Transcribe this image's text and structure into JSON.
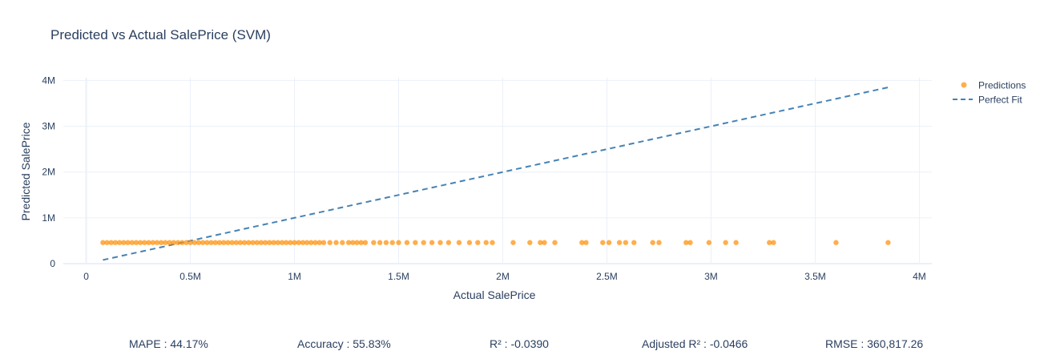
{
  "chart_data": {
    "type": "scatter",
    "title": "Predicted vs Actual SalePrice (SVM)",
    "xlabel": "Actual SalePrice",
    "ylabel": "Predicted SalePrice",
    "xlim": [
      -110000,
      4060000
    ],
    "ylim": [
      0,
      4060000
    ],
    "x_ticks": [
      {
        "value": 0,
        "label": "0"
      },
      {
        "value": 500000,
        "label": "0.5M"
      },
      {
        "value": 1000000,
        "label": "1M"
      },
      {
        "value": 1500000,
        "label": "1.5M"
      },
      {
        "value": 2000000,
        "label": "2M"
      },
      {
        "value": 2500000,
        "label": "2.5M"
      },
      {
        "value": 3000000,
        "label": "3M"
      },
      {
        "value": 3500000,
        "label": "3.5M"
      },
      {
        "value": 4000000,
        "label": "4M"
      }
    ],
    "y_ticks": [
      {
        "value": 0,
        "label": "0"
      },
      {
        "value": 1000000,
        "label": "1M"
      },
      {
        "value": 2000000,
        "label": "2M"
      },
      {
        "value": 3000000,
        "label": "3M"
      },
      {
        "value": 4000000,
        "label": "4M"
      }
    ],
    "grid": true,
    "legend_position": "top-right",
    "series": [
      {
        "name": "Predictions",
        "mode": "markers",
        "color": "#ff8c00",
        "x": [
          80000,
          100000,
          120000,
          140000,
          160000,
          180000,
          200000,
          220000,
          240000,
          260000,
          280000,
          300000,
          320000,
          340000,
          360000,
          380000,
          400000,
          420000,
          440000,
          460000,
          480000,
          500000,
          520000,
          540000,
          560000,
          580000,
          600000,
          620000,
          640000,
          660000,
          680000,
          700000,
          720000,
          740000,
          760000,
          780000,
          800000,
          820000,
          840000,
          860000,
          880000,
          900000,
          920000,
          940000,
          960000,
          980000,
          1000000,
          1020000,
          1040000,
          1060000,
          1080000,
          1100000,
          1120000,
          1140000,
          1170000,
          1200000,
          1230000,
          1260000,
          1280000,
          1300000,
          1320000,
          1340000,
          1380000,
          1410000,
          1440000,
          1470000,
          1500000,
          1540000,
          1580000,
          1620000,
          1660000,
          1700000,
          1740000,
          1790000,
          1840000,
          1880000,
          1920000,
          1950000,
          2050000,
          2130000,
          2180000,
          2200000,
          2250000,
          2380000,
          2400000,
          2480000,
          2510000,
          2560000,
          2590000,
          2630000,
          2720000,
          2750000,
          2880000,
          2900000,
          2990000,
          3070000,
          3120000,
          3280000,
          3300000,
          3600000,
          3850000
        ],
        "y": [
          460000,
          460000,
          460000,
          460000,
          460000,
          460000,
          460000,
          460000,
          460000,
          460000,
          460000,
          460000,
          460000,
          460000,
          460000,
          460000,
          460000,
          460000,
          460000,
          460000,
          460000,
          460000,
          460000,
          460000,
          460000,
          460000,
          460000,
          460000,
          460000,
          460000,
          460000,
          460000,
          460000,
          460000,
          460000,
          460000,
          460000,
          460000,
          460000,
          460000,
          460000,
          460000,
          460000,
          460000,
          460000,
          460000,
          460000,
          460000,
          460000,
          460000,
          460000,
          460000,
          460000,
          460000,
          460000,
          460000,
          460000,
          460000,
          460000,
          460000,
          460000,
          460000,
          460000,
          460000,
          460000,
          460000,
          460000,
          460000,
          460000,
          460000,
          460000,
          460000,
          460000,
          460000,
          460000,
          460000,
          460000,
          460000,
          460000,
          460000,
          460000,
          460000,
          460000,
          460000,
          460000,
          460000,
          460000,
          460000,
          460000,
          460000,
          460000,
          460000,
          460000,
          460000,
          460000,
          460000,
          460000,
          460000,
          460000,
          460000,
          460000
        ]
      },
      {
        "name": "Perfect Fit",
        "mode": "lines",
        "dash": "dash",
        "color": "#4682b4",
        "x": [
          80000,
          3850000
        ],
        "y": [
          80000,
          3850000
        ]
      }
    ]
  },
  "metrics": [
    {
      "label": "MAPE",
      "value": "44.17%"
    },
    {
      "label": "Accuracy",
      "value": "55.83%"
    },
    {
      "label": "R²",
      "value": "-0.0390"
    },
    {
      "label": "Adjusted R²",
      "value": "-0.0466"
    },
    {
      "label": "RMSE",
      "value": "360,817.26"
    }
  ],
  "colors": {
    "text": "#2a3f5f",
    "grid": "#ebf0f8",
    "zeroline": "#ebf0f8"
  }
}
